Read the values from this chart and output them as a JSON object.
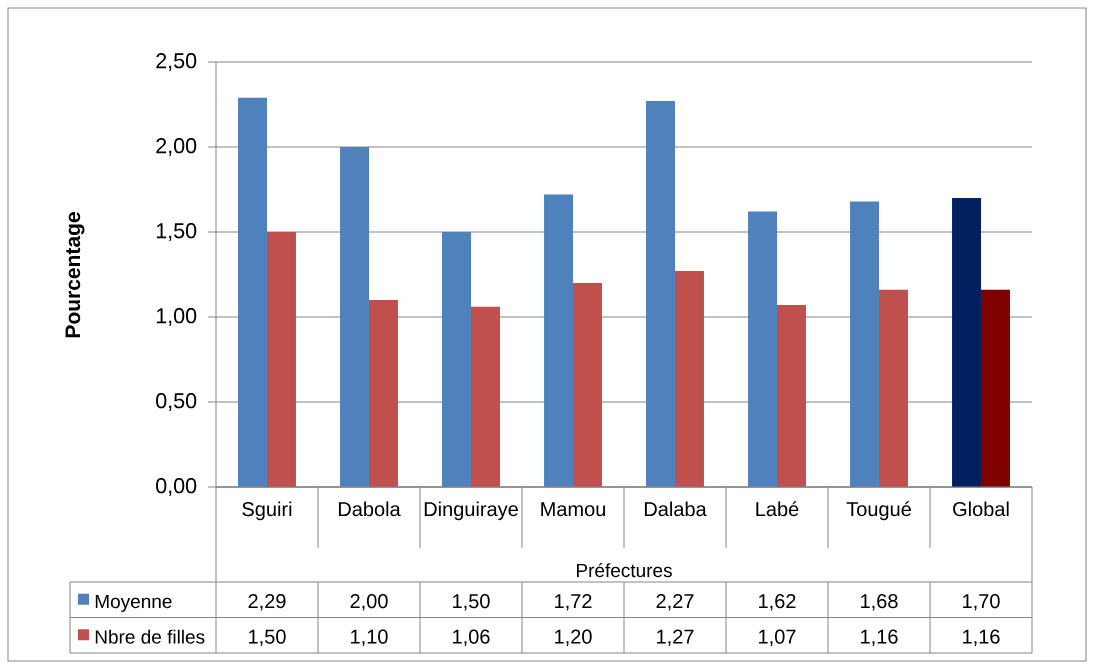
{
  "chart_data": {
    "type": "bar",
    "ylabel": "Pourcentage",
    "xlabel": "Préfectures",
    "categories": [
      "Sguiri",
      "Dabola",
      "Dinguiraye",
      "Mamou",
      "Dalaba",
      "Labé",
      "Tougué",
      "Global"
    ],
    "series": [
      {
        "name": "Moyenne",
        "color": "#4f81bd",
        "colors": [
          "#4f81bd",
          "#4f81bd",
          "#4f81bd",
          "#4f81bd",
          "#4f81bd",
          "#4f81bd",
          "#4f81bd",
          "#002060"
        ],
        "values": [
          2.29,
          2.0,
          1.5,
          1.72,
          2.27,
          1.62,
          1.68,
          1.7
        ],
        "value_labels": [
          "2,29",
          "2,00",
          "1,50",
          "1,72",
          "2,27",
          "1,62",
          "1,68",
          "1,70"
        ]
      },
      {
        "name": "Nbre de filles",
        "color": "#c0504d",
        "colors": [
          "#c0504d",
          "#c0504d",
          "#c0504d",
          "#c0504d",
          "#c0504d",
          "#c0504d",
          "#c0504d",
          "#800000"
        ],
        "values": [
          1.5,
          1.1,
          1.06,
          1.2,
          1.27,
          1.07,
          1.16,
          1.16
        ],
        "value_labels": [
          "1,50",
          "1,10",
          "1,06",
          "1,20",
          "1,27",
          "1,07",
          "1,16",
          "1,16"
        ]
      }
    ],
    "ylim": [
      0,
      2.5
    ],
    "yticks": [
      {
        "value": 0,
        "label": "0,00"
      },
      {
        "value": 0.5,
        "label": "0,50"
      },
      {
        "value": 1,
        "label": "1,00"
      },
      {
        "value": 1.5,
        "label": "1,50"
      },
      {
        "value": 2,
        "label": "2,00"
      },
      {
        "value": 2.5,
        "label": "2,50"
      }
    ],
    "grid": "y",
    "legend": "bottom"
  }
}
